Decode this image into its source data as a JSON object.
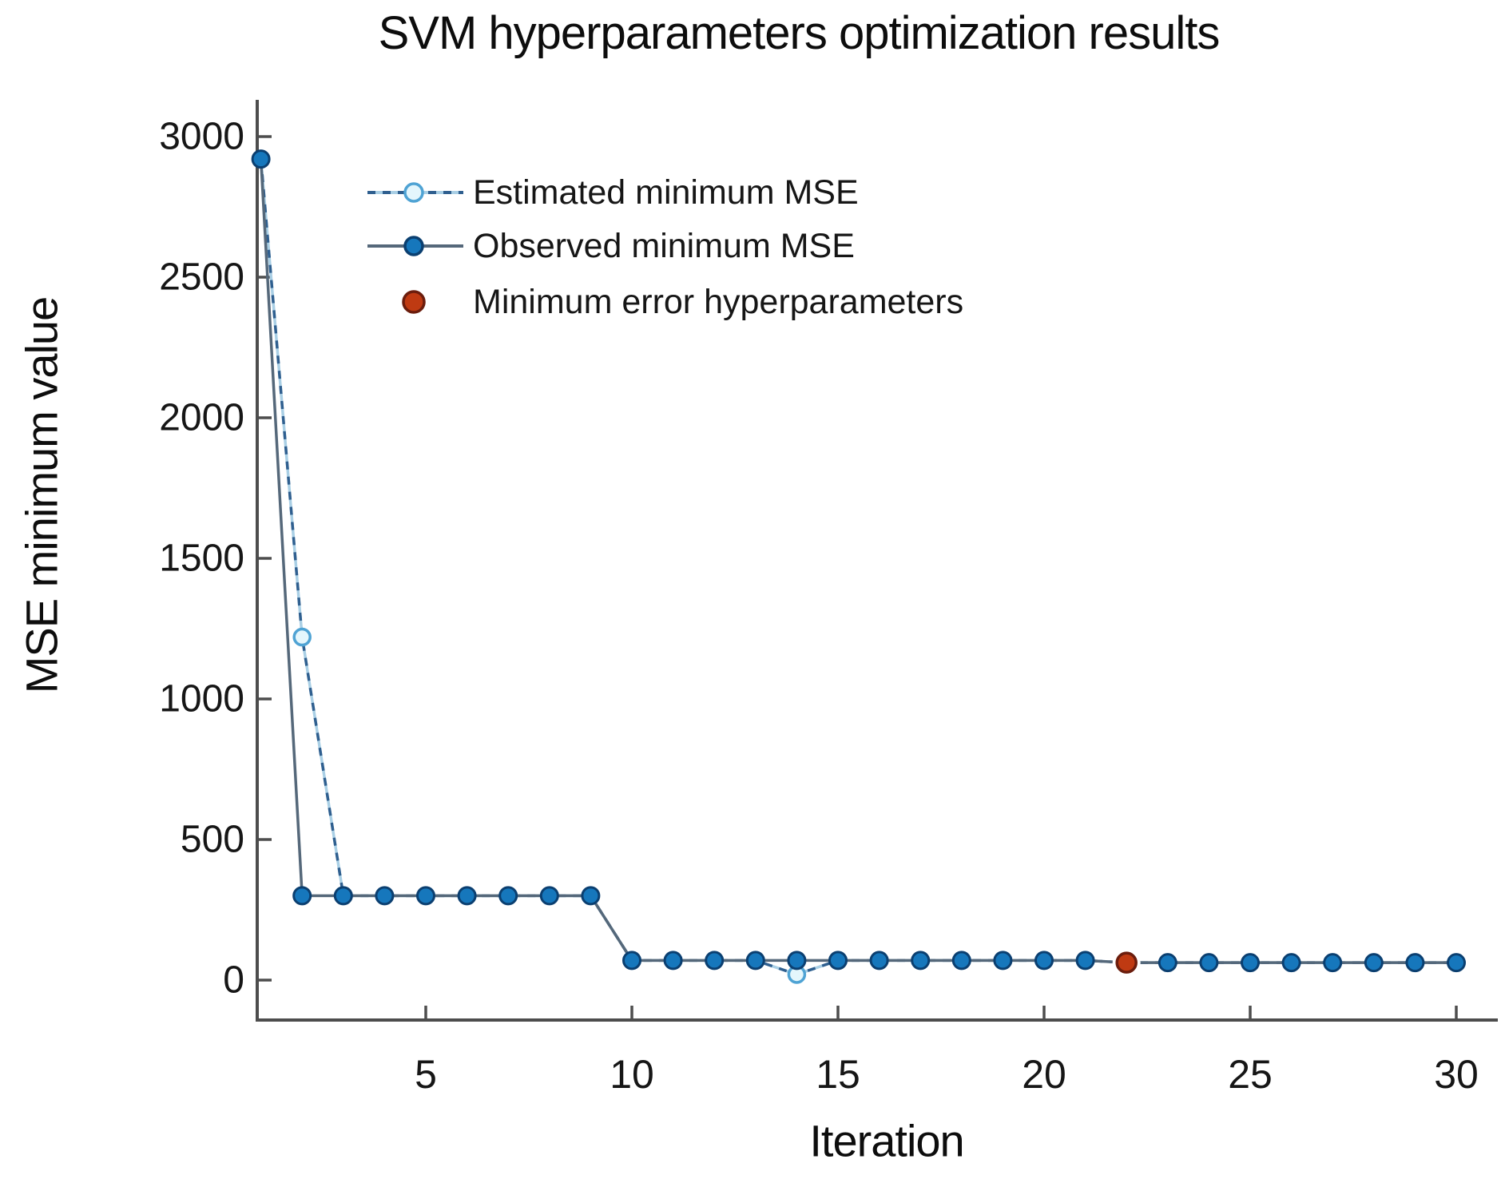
{
  "chart_data": {
    "type": "line",
    "title": "SVM hyperparameters optimization results",
    "xlabel": "Iteration",
    "ylabel": "MSE minimum value",
    "x_ticks": [
      5,
      10,
      15,
      20,
      25,
      30
    ],
    "y_ticks": [
      0,
      500,
      1000,
      1500,
      2000,
      2500,
      3000
    ],
    "x_range": [
      1,
      30
    ],
    "ylim": [
      0,
      3000
    ],
    "grid": false,
    "legend_position": "inside-upper-left",
    "axis_color": "#4d4d4d",
    "text_color": "#161616",
    "x": [
      1,
      2,
      3,
      4,
      5,
      6,
      7,
      8,
      9,
      10,
      11,
      12,
      13,
      14,
      15,
      16,
      17,
      18,
      19,
      20,
      21,
      22,
      23,
      24,
      25,
      26,
      27,
      28,
      29,
      30
    ],
    "series": [
      {
        "name": "Estimated minimum MSE",
        "kind": "line",
        "line_style": "dashed",
        "line_base_color": "#a9cfe5",
        "line_dash_color": "#2f5f8f",
        "marker": "open-circle",
        "marker_fill": "#e4f6fc",
        "marker_stroke": "#4fa3d4",
        "marker_visible_at": [
          2,
          14
        ],
        "values": [
          2920,
          1220,
          300,
          300,
          300,
          300,
          300,
          300,
          300,
          70,
          70,
          70,
          70,
          20,
          70,
          70,
          70,
          70,
          70,
          70,
          70,
          62,
          62,
          62,
          62,
          62,
          62,
          62,
          62,
          62
        ]
      },
      {
        "name": "Observed minimum MSE",
        "kind": "line",
        "line_style": "solid",
        "line_color": "#55687a",
        "marker": "filled-circle",
        "marker_fill": "#1677bc",
        "marker_stroke": "#0b3f70",
        "values": [
          2920,
          300,
          300,
          300,
          300,
          300,
          300,
          300,
          300,
          70,
          70,
          70,
          70,
          70,
          70,
          70,
          70,
          70,
          70,
          70,
          70,
          62,
          62,
          62,
          62,
          62,
          62,
          62,
          62,
          62
        ]
      },
      {
        "name": "Minimum error hyperparameters",
        "kind": "point",
        "marker": "filled-circle",
        "marker_fill": "#bf3a12",
        "marker_stroke": "#6b1d0d",
        "point_x": 22,
        "point_value": 62
      }
    ]
  }
}
